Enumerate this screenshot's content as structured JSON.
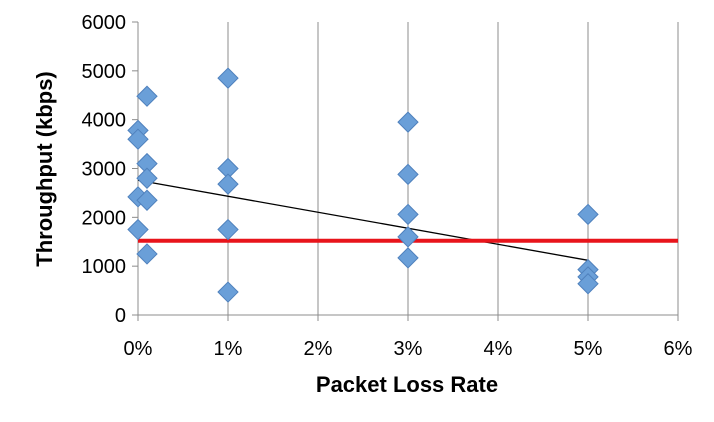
{
  "chart_data": {
    "type": "scatter",
    "title": "",
    "xlabel": "Packet Loss Rate",
    "ylabel": "Throughput (kbps)",
    "xlim": [
      0,
      6
    ],
    "ylim": [
      0,
      6000
    ],
    "x_ticks": [
      0,
      1,
      2,
      3,
      4,
      5,
      6
    ],
    "x_tick_labels": [
      "0%",
      "1%",
      "2%",
      "3%",
      "4%",
      "5%",
      "6%"
    ],
    "y_ticks": [
      0,
      1000,
      2000,
      3000,
      4000,
      5000,
      6000
    ],
    "y_tick_labels": [
      "0",
      "1000",
      "2000",
      "3000",
      "4000",
      "5000",
      "6000"
    ],
    "grid": "vertical",
    "legend": "none",
    "series": [
      {
        "marker": "diamond",
        "color": "#6A9FD8",
        "edge_color": "#4F81BD",
        "points": [
          {
            "x": 0.0,
            "y": 3780
          },
          {
            "x": 0.0,
            "y": 3600
          },
          {
            "x": 0.0,
            "y": 2420
          },
          {
            "x": 0.0,
            "y": 1750
          },
          {
            "x": 0.1,
            "y": 4480
          },
          {
            "x": 0.1,
            "y": 3100
          },
          {
            "x": 0.1,
            "y": 2800
          },
          {
            "x": 0.1,
            "y": 2350
          },
          {
            "x": 0.1,
            "y": 1250
          },
          {
            "x": 1.0,
            "y": 4850
          },
          {
            "x": 1.0,
            "y": 3000
          },
          {
            "x": 1.0,
            "y": 2680
          },
          {
            "x": 1.0,
            "y": 1750
          },
          {
            "x": 1.0,
            "y": 470
          },
          {
            "x": 3.0,
            "y": 3950
          },
          {
            "x": 3.0,
            "y": 2880
          },
          {
            "x": 3.0,
            "y": 2060
          },
          {
            "x": 3.0,
            "y": 1600
          },
          {
            "x": 3.0,
            "y": 1170
          },
          {
            "x": 5.0,
            "y": 2060
          },
          {
            "x": 5.0,
            "y": 930
          },
          {
            "x": 5.0,
            "y": 780
          },
          {
            "x": 5.0,
            "y": 640
          }
        ]
      }
    ],
    "trendline": {
      "type": "linear",
      "color": "#000000",
      "x_start": 0.0,
      "y_start": 2760,
      "x_end": 5.0,
      "y_end": 1120
    },
    "reference_line": {
      "y": 1520,
      "color": "#E8141B"
    }
  }
}
